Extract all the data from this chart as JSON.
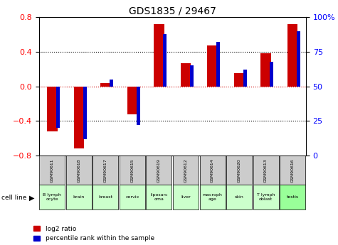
{
  "title": "GDS1835 / 29467",
  "samples": [
    "GSM90611",
    "GSM90618",
    "GSM90617",
    "GSM90615",
    "GSM90619",
    "GSM90612",
    "GSM90614",
    "GSM90620",
    "GSM90613",
    "GSM90616"
  ],
  "cell_lines": [
    "B lymph\nocyte",
    "brain",
    "breast",
    "cervix",
    "liposarc\noma",
    "liver",
    "macroph\nage",
    "skin",
    "T lymph\noblast",
    "testis"
  ],
  "cell_line_colors": [
    "#ccffcc",
    "#ccffcc",
    "#ccffcc",
    "#ccffcc",
    "#ccffcc",
    "#ccffcc",
    "#ccffcc",
    "#ccffcc",
    "#ccffcc",
    "#99ff99"
  ],
  "log2_ratio": [
    -0.52,
    -0.72,
    0.04,
    -0.32,
    0.72,
    0.27,
    0.47,
    0.15,
    0.38,
    0.72
  ],
  "percentile_rank": [
    20,
    12,
    55,
    22,
    88,
    65,
    82,
    62,
    68,
    90
  ],
  "ylim_left": [
    -0.8,
    0.8
  ],
  "ylim_right": [
    0,
    100
  ],
  "bar_color_red": "#cc0000",
  "bar_color_blue": "#0000cc",
  "dotted_line_color": "#000000",
  "zero_line_color": "#cc0000",
  "legend_red_label": "log2 ratio",
  "legend_blue_label": "percentile rank within the sample",
  "cell_line_label": "cell line",
  "header_bg": "#cccccc",
  "title_fontsize": 10
}
